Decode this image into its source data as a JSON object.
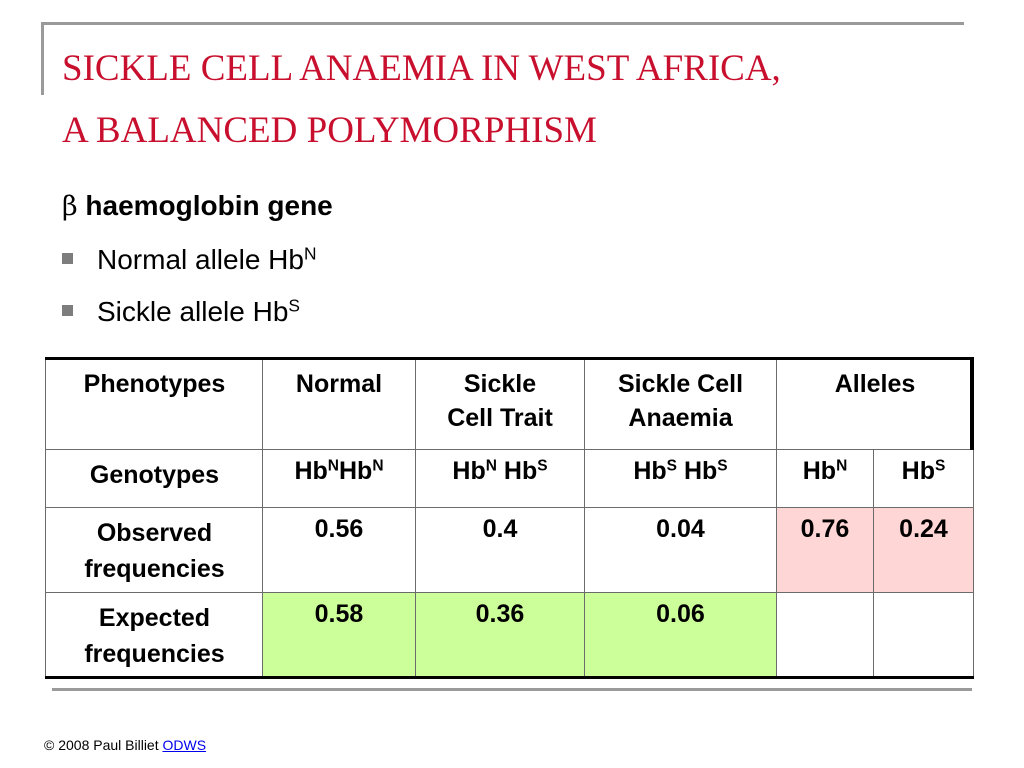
{
  "slide": {
    "title_line1": "SICKLE CELL ANAEMIA IN WEST AFRICA,",
    "title_line2": "A BALANCED POLYMORPHISM",
    "heading_symbol": "β",
    "heading_text": "haemoglobin gene",
    "bullets": [
      {
        "text": "Normal allele Hb",
        "sup": "N"
      },
      {
        "text": "Sickle allele Hb",
        "sup": "S"
      }
    ]
  },
  "table": {
    "header": {
      "phenotypes": "Phenotypes",
      "normal": "Normal",
      "trait_line1": "Sickle",
      "trait_line2": "Cell Trait",
      "anaemia_line1": "Sickle Cell",
      "anaemia_line2": "Anaemia",
      "alleles": "Alleles"
    },
    "genotypes": {
      "label": "Genotypes",
      "normal": {
        "a": "Hb",
        "a_sup": "N",
        "b": "Hb",
        "b_sup": "N"
      },
      "trait": {
        "a": "Hb",
        "a_sup": "N",
        "b": " Hb",
        "b_sup": "S"
      },
      "anaemia": {
        "a": "Hb",
        "a_sup": "S",
        "b": " Hb",
        "b_sup": "S"
      },
      "allele_n": {
        "a": "Hb",
        "a_sup": "N"
      },
      "allele_s": {
        "a": "Hb",
        "a_sup": "S"
      }
    },
    "observed": {
      "label_line1": "Observed",
      "label_line2": "frequencies",
      "values": [
        "0.56",
        "0.4",
        "0.04",
        "0.76",
        "0.24"
      ]
    },
    "expected": {
      "label_line1": "Expected",
      "label_line2": "frequencies",
      "values": [
        "0.58",
        "0.36",
        "0.06"
      ]
    }
  },
  "footer": {
    "copyright": "© 2008 Paul Billiet ",
    "link_text": "ODWS"
  },
  "colors": {
    "title": "#c8102e",
    "observed_alleles_fill": "#ffd6d6",
    "expected_fill": "#ccff99",
    "rule": "#9a9a9a"
  }
}
